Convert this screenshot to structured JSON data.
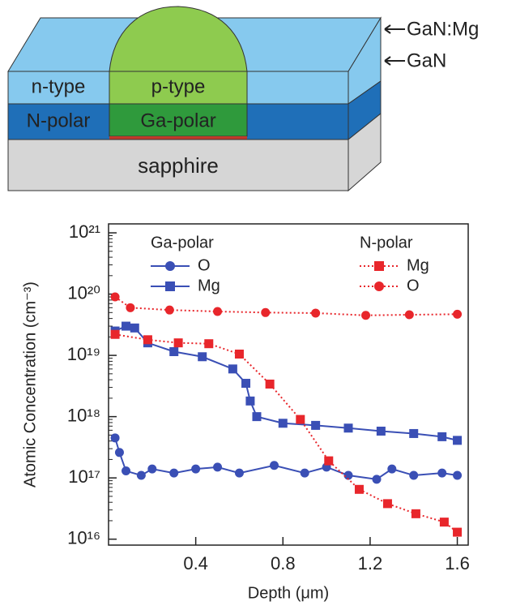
{
  "diagram": {
    "labels": {
      "top_layer": "GaN:Mg",
      "bottom_layer": "GaN",
      "n_type": "n-type",
      "p_type": "p-type",
      "n_polar": "N-polar",
      "ga_polar": "Ga-polar",
      "substrate": "sapphire"
    }
  },
  "chart_data": {
    "type": "line",
    "x_label": "Depth (μm)",
    "y_label": "Atomic Concentration (cm⁻³)",
    "xlim": [
      0,
      1.65
    ],
    "xticks": [
      0.4,
      0.8,
      1.2,
      1.6
    ],
    "ylim": [
      8000000000000000.0,
      1.4e+21
    ],
    "log_y": true,
    "yticks": [
      {
        "value": 1e+16,
        "label": "10¹⁶"
      },
      {
        "value": 1e+17,
        "label": "10¹⁷"
      },
      {
        "value": 1e+18,
        "label": "10¹⁸"
      },
      {
        "value": 1e+19,
        "label": "10¹⁹"
      },
      {
        "value": 1e+20,
        "label": "10²⁰"
      },
      {
        "value": 1e+21,
        "label": "10²¹"
      }
    ],
    "legend_groups": [
      "Ga-polar",
      "N-polar"
    ],
    "series": [
      {
        "name": "O",
        "group": 0,
        "color": "#3a4fb5",
        "marker": "circle",
        "dash": "solid",
        "x": [
          0.03,
          0.05,
          0.08,
          0.15,
          0.2,
          0.3,
          0.4,
          0.5,
          0.6,
          0.76,
          0.9,
          1.0,
          1.1,
          1.23,
          1.3,
          1.4,
          1.53,
          1.6
        ],
        "values": [
          4.5e+17,
          2.6e+17,
          1.3e+17,
          1.1e+17,
          1.4e+17,
          1.2e+17,
          1.4e+17,
          1.5e+17,
          1.2e+17,
          1.6e+17,
          1.2e+17,
          1.5e+17,
          1.1e+17,
          9.5e+16,
          1.4e+17,
          1.1e+17,
          1.2e+17,
          1.1e+17
        ]
      },
      {
        "name": "Mg",
        "group": 0,
        "color": "#3a4fb5",
        "marker": "square",
        "dash": "solid",
        "x": [
          0.03,
          0.08,
          0.12,
          0.18,
          0.3,
          0.43,
          0.57,
          0.63,
          0.65,
          0.68,
          0.8,
          0.95,
          1.1,
          1.25,
          1.4,
          1.53,
          1.6
        ],
        "values": [
          2.5e+19,
          3e+19,
          2.8e+19,
          1.6e+19,
          1.15e+19,
          9.5e+18,
          6e+18,
          3.5e+18,
          1.8e+18,
          1e+18,
          7.8e+17,
          7.2e+17,
          6.5e+17,
          5.8e+17,
          5.3e+17,
          4.7e+17,
          4.1e+17
        ]
      },
      {
        "name": "Mg",
        "group": 1,
        "color": "#e8262b",
        "marker": "square",
        "dash": "dotted",
        "x": [
          0.03,
          0.18,
          0.32,
          0.46,
          0.6,
          0.74,
          0.88,
          1.01,
          1.15,
          1.28,
          1.41,
          1.54,
          1.6
        ],
        "values": [
          2.2e+19,
          1.8e+19,
          1.6e+19,
          1.55e+19,
          1.05e+19,
          3.4e+18,
          9e+17,
          1.9e+17,
          6.5e+16,
          3.8e+16,
          2.6e+16,
          1.9e+16,
          1.3e+16
        ]
      },
      {
        "name": "O",
        "group": 1,
        "color": "#e8262b",
        "marker": "circle",
        "dash": "dotted",
        "x": [
          0.03,
          0.1,
          0.28,
          0.5,
          0.72,
          0.95,
          1.18,
          1.38,
          1.6
        ],
        "values": [
          9e+19,
          6e+19,
          5.5e+19,
          5.2e+19,
          5e+19,
          4.9e+19,
          4.5e+19,
          4.6e+19,
          4.7e+19
        ]
      }
    ]
  }
}
